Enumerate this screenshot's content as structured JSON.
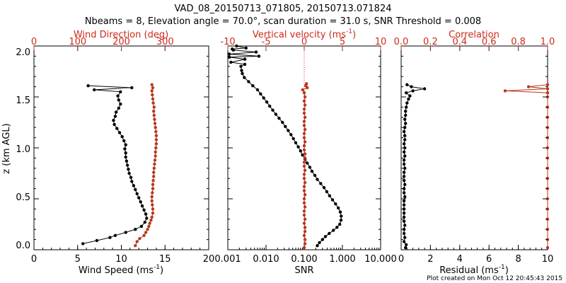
{
  "title": {
    "line1": "VAD_08_20150713_071805, 20150713.071824",
    "line2": "Nbeams = 8, Elevation angle = 70.0°, scan duration = 31.0 s, SNR Threshold = 0.008"
  },
  "footer": "Plot created on Mon Oct 12 20:45:43 2015",
  "colors": {
    "primary": "#000000",
    "secondary": "#b7391f",
    "axis_top": "#cc2a1a"
  },
  "ylabel": "z (km AGL)",
  "ylim": [
    0,
    2.0
  ],
  "yticks": [
    "0.0",
    "0.5",
    "1.0",
    "1.5",
    "2.0"
  ],
  "panels": [
    {
      "bottom_label": "Wind Speed (ms",
      "bottom_sup": "-1",
      "bottom_close": ")",
      "bottom_ticks": [
        "0",
        "5",
        "10",
        "15",
        "20"
      ],
      "top_label": "Wind Direction (deg)",
      "top_sup": "",
      "top_close": "",
      "top_ticks": [
        "0",
        "100",
        "200",
        "300"
      ]
    },
    {
      "bottom_label": "SNR",
      "bottom_sup": "",
      "bottom_close": "",
      "bottom_ticks": [
        "0.001",
        "0.010",
        "0.100",
        "1.000",
        "10.000"
      ],
      "top_label": "Vertical velocity (ms",
      "top_sup": "-1",
      "top_close": ")",
      "top_ticks": [
        "-10",
        "-5",
        "0",
        "5",
        "10"
      ]
    },
    {
      "bottom_label": "Residual (ms",
      "bottom_sup": "-1",
      "bottom_close": ")",
      "bottom_ticks": [
        "0",
        "2",
        "4",
        "6",
        "8",
        "10"
      ],
      "top_label": "Correlation",
      "top_sup": "",
      "top_close": "",
      "top_ticks": [
        "0.0",
        "0.2",
        "0.4",
        "0.6",
        "0.8",
        "1.0"
      ]
    }
  ],
  "chart_data": [
    {
      "type": "line",
      "panel": 0,
      "ylabel": "z (km AGL)",
      "ylim": [
        0,
        2.0
      ],
      "xlim": [
        0,
        20
      ],
      "top_xlim": [
        0,
        400
      ],
      "series": [
        {
          "axis": "bottom",
          "color": "#000000",
          "points": [
            [
              5.6,
              0.06
            ],
            [
              7.2,
              0.09
            ],
            [
              8.7,
              0.12
            ],
            [
              9.3,
              0.14
            ],
            [
              10.5,
              0.17
            ],
            [
              11.6,
              0.2
            ],
            [
              12.3,
              0.23
            ],
            [
              12.7,
              0.27
            ],
            [
              12.9,
              0.31
            ],
            [
              12.8,
              0.35
            ],
            [
              12.6,
              0.39
            ],
            [
              12.4,
              0.43
            ],
            [
              12.2,
              0.47
            ],
            [
              12.0,
              0.51
            ],
            [
              11.8,
              0.55
            ],
            [
              11.6,
              0.59
            ],
            [
              11.4,
              0.63
            ],
            [
              11.2,
              0.67
            ],
            [
              11.1,
              0.71
            ],
            [
              10.9,
              0.75
            ],
            [
              10.8,
              0.79
            ],
            [
              10.7,
              0.83
            ],
            [
              10.6,
              0.87
            ],
            [
              10.5,
              0.91
            ],
            [
              10.5,
              0.95
            ],
            [
              10.4,
              0.99
            ],
            [
              10.5,
              1.03
            ],
            [
              10.3,
              1.07
            ],
            [
              10.1,
              1.11
            ],
            [
              9.8,
              1.15
            ],
            [
              9.5,
              1.19
            ],
            [
              9.2,
              1.23
            ],
            [
              9.1,
              1.27
            ],
            [
              9.3,
              1.31
            ],
            [
              9.4,
              1.35
            ],
            [
              9.7,
              1.39
            ],
            [
              9.9,
              1.43
            ],
            [
              9.7,
              1.47
            ],
            [
              9.6,
              1.51
            ],
            [
              9.9,
              1.55
            ],
            [
              6.9,
              1.57
            ],
            [
              11.2,
              1.59
            ],
            [
              6.2,
              1.61
            ]
          ]
        },
        {
          "axis": "top",
          "color": "#b7391f",
          "points": [
            [
              232,
              0.04
            ],
            [
              236,
              0.08
            ],
            [
              242,
              0.11
            ],
            [
              252,
              0.14
            ],
            [
              256,
              0.17
            ],
            [
              260,
              0.2
            ],
            [
              263,
              0.23
            ],
            [
              265,
              0.26
            ],
            [
              268,
              0.29
            ],
            [
              270,
              0.32
            ],
            [
              272,
              0.36
            ],
            [
              272,
              0.4
            ],
            [
              271,
              0.44
            ],
            [
              270,
              0.48
            ],
            [
              270,
              0.52
            ],
            [
              271,
              0.56
            ],
            [
              272,
              0.6
            ],
            [
              272,
              0.64
            ],
            [
              273,
              0.68
            ],
            [
              274,
              0.72
            ],
            [
              274,
              0.76
            ],
            [
              275,
              0.8
            ],
            [
              276,
              0.84
            ],
            [
              277,
              0.88
            ],
            [
              278,
              0.92
            ],
            [
              278,
              0.96
            ],
            [
              279,
              1.0
            ],
            [
              280,
              1.04
            ],
            [
              280,
              1.08
            ],
            [
              280,
              1.12
            ],
            [
              279,
              1.16
            ],
            [
              278,
              1.2
            ],
            [
              277,
              1.24
            ],
            [
              276,
              1.28
            ],
            [
              275,
              1.32
            ],
            [
              274,
              1.36
            ],
            [
              275,
              1.4
            ],
            [
              273,
              1.44
            ],
            [
              272,
              1.48
            ],
            [
              271,
              1.52
            ],
            [
              270,
              1.56
            ],
            [
              272,
              1.59
            ],
            [
              270,
              1.62
            ]
          ]
        }
      ]
    },
    {
      "type": "line",
      "panel": 1,
      "xscale": "log",
      "xlim": [
        0.001,
        10
      ],
      "top_xlim": [
        -10,
        10
      ],
      "series": [
        {
          "axis": "bottom",
          "color": "#000000",
          "points": [
            [
              0.22,
              0.04
            ],
            [
              0.25,
              0.07
            ],
            [
              0.3,
              0.1
            ],
            [
              0.36,
              0.13
            ],
            [
              0.45,
              0.16
            ],
            [
              0.58,
              0.19
            ],
            [
              0.72,
              0.22
            ],
            [
              0.85,
              0.25
            ],
            [
              0.92,
              0.29
            ],
            [
              0.93,
              0.33
            ],
            [
              0.88,
              0.37
            ],
            [
              0.78,
              0.41
            ],
            [
              0.66,
              0.45
            ],
            [
              0.55,
              0.49
            ],
            [
              0.46,
              0.53
            ],
            [
              0.39,
              0.57
            ],
            [
              0.33,
              0.61
            ],
            [
              0.27,
              0.65
            ],
            [
              0.22,
              0.69
            ],
            [
              0.19,
              0.73
            ],
            [
              0.16,
              0.77
            ],
            [
              0.14,
              0.81
            ],
            [
              0.12,
              0.85
            ],
            [
              0.105,
              0.89
            ],
            [
              0.09,
              0.93
            ],
            [
              0.08,
              0.97
            ],
            [
              0.07,
              1.01
            ],
            [
              0.06,
              1.05
            ],
            [
              0.052,
              1.09
            ],
            [
              0.045,
              1.13
            ],
            [
              0.038,
              1.17
            ],
            [
              0.032,
              1.21
            ],
            [
              0.027,
              1.25
            ],
            [
              0.022,
              1.29
            ],
            [
              0.018,
              1.33
            ],
            [
              0.015,
              1.37
            ],
            [
              0.0125,
              1.41
            ],
            [
              0.0105,
              1.45
            ],
            [
              0.0087,
              1.49
            ],
            [
              0.0072,
              1.53
            ],
            [
              0.006,
              1.57
            ],
            [
              0.0045,
              1.61
            ],
            [
              0.0035,
              1.65
            ],
            [
              0.0027,
              1.69
            ],
            [
              0.0024,
              1.73
            ],
            [
              0.0023,
              1.76
            ],
            [
              0.0022,
              1.8
            ],
            [
              0.0028,
              1.82
            ],
            [
              0.0012,
              1.84
            ],
            [
              0.0028,
              1.87
            ],
            [
              0.0011,
              1.89
            ],
            [
              0.0065,
              1.9
            ],
            [
              0.0011,
              1.92
            ],
            [
              0.0055,
              1.94
            ],
            [
              0.0014,
              1.96
            ],
            [
              0.0013,
              1.97
            ],
            [
              0.003,
              1.98
            ],
            [
              0.0017,
              2.0
            ]
          ]
        },
        {
          "axis": "top",
          "color": "#b7391f",
          "points": [
            [
              0.0,
              0.02
            ],
            [
              0.1,
              0.06
            ],
            [
              0.1,
              0.1
            ],
            [
              0.0,
              0.14
            ],
            [
              0.1,
              0.18
            ],
            [
              0.1,
              0.22
            ],
            [
              0.0,
              0.26
            ],
            [
              0.1,
              0.3
            ],
            [
              0.0,
              0.34
            ],
            [
              0.0,
              0.38
            ],
            [
              0.1,
              0.42
            ],
            [
              0.0,
              0.46
            ],
            [
              0.0,
              0.5
            ],
            [
              0.1,
              0.54
            ],
            [
              0.0,
              0.58
            ],
            [
              0.0,
              0.62
            ],
            [
              0.1,
              0.66
            ],
            [
              0.0,
              0.7
            ],
            [
              0.0,
              0.74
            ],
            [
              0.1,
              0.78
            ],
            [
              0.0,
              0.82
            ],
            [
              0.0,
              0.86
            ],
            [
              0.1,
              0.9
            ],
            [
              0.1,
              0.94
            ],
            [
              0.0,
              0.98
            ],
            [
              0.0,
              1.02
            ],
            [
              0.1,
              1.06
            ],
            [
              0.0,
              1.1
            ],
            [
              0.0,
              1.14
            ],
            [
              0.1,
              1.18
            ],
            [
              0.0,
              1.22
            ],
            [
              0.0,
              1.26
            ],
            [
              0.1,
              1.3
            ],
            [
              0.0,
              1.34
            ],
            [
              0.0,
              1.38
            ],
            [
              0.1,
              1.42
            ],
            [
              0.0,
              1.46
            ],
            [
              0.1,
              1.5
            ],
            [
              0.0,
              1.54
            ],
            [
              -0.2,
              1.57
            ],
            [
              0.4,
              1.59
            ],
            [
              0.2,
              1.61
            ],
            [
              0.3,
              1.63
            ]
          ]
        }
      ]
    },
    {
      "type": "line",
      "panel": 2,
      "xlim": [
        0,
        10
      ],
      "top_xlim": [
        0,
        1.0
      ],
      "series": [
        {
          "axis": "bottom",
          "color": "#000000",
          "points": [
            [
              0.3,
              0.02
            ],
            [
              0.35,
              0.05
            ],
            [
              0.2,
              0.08
            ],
            [
              0.25,
              0.12
            ],
            [
              0.2,
              0.16
            ],
            [
              0.2,
              0.2
            ],
            [
              0.25,
              0.24
            ],
            [
              0.2,
              0.28
            ],
            [
              0.2,
              0.32
            ],
            [
              0.2,
              0.36
            ],
            [
              0.2,
              0.4
            ],
            [
              0.2,
              0.44
            ],
            [
              0.2,
              0.48
            ],
            [
              0.25,
              0.52
            ],
            [
              0.2,
              0.56
            ],
            [
              0.2,
              0.6
            ],
            [
              0.25,
              0.64
            ],
            [
              0.2,
              0.68
            ],
            [
              0.2,
              0.72
            ],
            [
              0.2,
              0.76
            ],
            [
              0.25,
              0.8
            ],
            [
              0.2,
              0.84
            ],
            [
              0.2,
              0.88
            ],
            [
              0.25,
              0.92
            ],
            [
              0.2,
              0.96
            ],
            [
              0.25,
              1.0
            ],
            [
              0.2,
              1.04
            ],
            [
              0.25,
              1.08
            ],
            [
              0.25,
              1.12
            ],
            [
              0.2,
              1.16
            ],
            [
              0.25,
              1.2
            ],
            [
              0.3,
              1.24
            ],
            [
              0.25,
              1.28
            ],
            [
              0.3,
              1.32
            ],
            [
              0.3,
              1.36
            ],
            [
              0.35,
              1.4
            ],
            [
              0.4,
              1.44
            ],
            [
              0.5,
              1.48
            ],
            [
              0.6,
              1.51
            ],
            [
              0.35,
              1.54
            ],
            [
              0.8,
              1.56
            ],
            [
              1.6,
              1.58
            ],
            [
              0.7,
              1.6
            ],
            [
              0.4,
              1.62
            ]
          ]
        },
        {
          "axis": "top",
          "color": "#b7391f",
          "points": [
            [
              1.0,
              0.02
            ],
            [
              1.0,
              0.1
            ],
            [
              1.0,
              0.2
            ],
            [
              1.0,
              0.3
            ],
            [
              1.0,
              0.4
            ],
            [
              1.0,
              0.5
            ],
            [
              1.0,
              0.6
            ],
            [
              1.0,
              0.7
            ],
            [
              1.0,
              0.8
            ],
            [
              1.0,
              0.9
            ],
            [
              1.0,
              1.0
            ],
            [
              1.0,
              1.1
            ],
            [
              1.0,
              1.2
            ],
            [
              1.0,
              1.3
            ],
            [
              1.0,
              1.4
            ],
            [
              1.0,
              1.5
            ],
            [
              1.0,
              1.54
            ],
            [
              0.71,
              1.56
            ],
            [
              1.0,
              1.58
            ],
            [
              0.87,
              1.6
            ],
            [
              1.0,
              1.62
            ]
          ]
        }
      ]
    }
  ]
}
